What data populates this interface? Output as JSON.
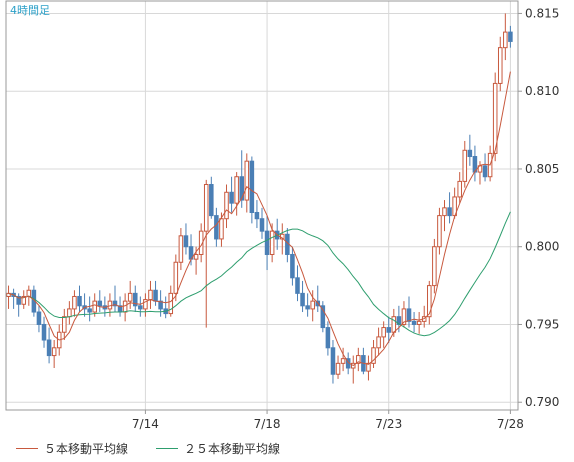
{
  "chart_data": {
    "type": "candlestick",
    "title": "4時間足",
    "x_ticks": [
      {
        "label": "7/14",
        "index": 27
      },
      {
        "label": "7/18",
        "index": 51
      },
      {
        "label": "7/23",
        "index": 75
      },
      {
        "label": "7/28",
        "index": 99
      }
    ],
    "y_ticks": [
      "0.815",
      "0.810",
      "0.805",
      "0.800",
      "0.795",
      "0.790"
    ],
    "ylim": [
      0.7895,
      0.8158
    ],
    "grid": true,
    "colors": {
      "up": "#c8593e",
      "down": "#4a7fb5",
      "ma5": "#c8593e",
      "ma25": "#2e9e6e",
      "grid": "#d8d8d8",
      "title": "#2ba0c8"
    },
    "ohlc": [
      [
        0.7968,
        0.7975,
        0.796,
        0.797
      ],
      [
        0.797,
        0.7973,
        0.796,
        0.7968
      ],
      [
        0.7968,
        0.797,
        0.7955,
        0.7963
      ],
      [
        0.7963,
        0.7972,
        0.796,
        0.7968
      ],
      [
        0.7968,
        0.7975,
        0.7962,
        0.7972
      ],
      [
        0.7972,
        0.7975,
        0.7955,
        0.7958
      ],
      [
        0.7958,
        0.7962,
        0.7945,
        0.795
      ],
      [
        0.795,
        0.7955,
        0.7935,
        0.794
      ],
      [
        0.794,
        0.7948,
        0.7925,
        0.793
      ],
      [
        0.793,
        0.794,
        0.7922,
        0.7935
      ],
      [
        0.7935,
        0.795,
        0.793,
        0.7945
      ],
      [
        0.7945,
        0.796,
        0.794,
        0.7955
      ],
      [
        0.7955,
        0.7965,
        0.795,
        0.796
      ],
      [
        0.796,
        0.7972,
        0.7955,
        0.7968
      ],
      [
        0.7968,
        0.7975,
        0.7958,
        0.7962
      ],
      [
        0.7962,
        0.797,
        0.7955,
        0.796
      ],
      [
        0.796,
        0.7968,
        0.7952,
        0.7958
      ],
      [
        0.7958,
        0.797,
        0.7955,
        0.7965
      ],
      [
        0.7965,
        0.7972,
        0.7958,
        0.7962
      ],
      [
        0.7962,
        0.7968,
        0.7955,
        0.796
      ],
      [
        0.796,
        0.797,
        0.7955,
        0.7965
      ],
      [
        0.7965,
        0.7975,
        0.7958,
        0.7962
      ],
      [
        0.7962,
        0.7968,
        0.7955,
        0.7958
      ],
      [
        0.7958,
        0.797,
        0.7952,
        0.7965
      ],
      [
        0.7965,
        0.7978,
        0.796,
        0.797
      ],
      [
        0.797,
        0.7975,
        0.7958,
        0.7962
      ],
      [
        0.7962,
        0.7968,
        0.7955,
        0.796
      ],
      [
        0.796,
        0.797,
        0.7955,
        0.7966
      ],
      [
        0.7966,
        0.7978,
        0.796,
        0.7972
      ],
      [
        0.7972,
        0.7978,
        0.7962,
        0.7965
      ],
      [
        0.7965,
        0.7972,
        0.7955,
        0.796
      ],
      [
        0.796,
        0.7968,
        0.7954,
        0.7957
      ],
      [
        0.7957,
        0.7975,
        0.7955,
        0.797
      ],
      [
        0.797,
        0.7995,
        0.7965,
        0.799
      ],
      [
        0.799,
        0.8012,
        0.7985,
        0.8007
      ],
      [
        0.8007,
        0.8015,
        0.7995,
        0.8
      ],
      [
        0.8,
        0.8008,
        0.7988,
        0.7992
      ],
      [
        0.7992,
        0.8,
        0.7982,
        0.7995
      ],
      [
        0.7995,
        0.8015,
        0.799,
        0.801
      ],
      [
        0.801,
        0.8043,
        0.7948,
        0.804
      ],
      [
        0.804,
        0.8045,
        0.8018,
        0.802
      ],
      [
        0.802,
        0.8025,
        0.8,
        0.8005
      ],
      [
        0.8005,
        0.8022,
        0.8,
        0.8018
      ],
      [
        0.8018,
        0.804,
        0.8012,
        0.8035
      ],
      [
        0.8035,
        0.8045,
        0.8022,
        0.8028
      ],
      [
        0.8028,
        0.8048,
        0.802,
        0.8045
      ],
      [
        0.8045,
        0.8062,
        0.8025,
        0.803
      ],
      [
        0.803,
        0.806,
        0.8022,
        0.8055
      ],
      [
        0.8055,
        0.8058,
        0.8015,
        0.8022
      ],
      [
        0.8022,
        0.803,
        0.8012,
        0.8018
      ],
      [
        0.8018,
        0.8025,
        0.8005,
        0.801
      ],
      [
        0.801,
        0.802,
        0.7985,
        0.7995
      ],
      [
        0.7995,
        0.8015,
        0.799,
        0.801
      ],
      [
        0.801,
        0.8018,
        0.7998,
        0.8005
      ],
      [
        0.8005,
        0.8015,
        0.7995,
        0.8008
      ],
      [
        0.8008,
        0.8012,
        0.799,
        0.7995
      ],
      [
        0.7995,
        0.8,
        0.7975,
        0.798
      ],
      [
        0.798,
        0.7988,
        0.7965,
        0.797
      ],
      [
        0.797,
        0.7978,
        0.7958,
        0.7962
      ],
      [
        0.7962,
        0.797,
        0.7955,
        0.796
      ],
      [
        0.796,
        0.7972,
        0.7952,
        0.7965
      ],
      [
        0.7965,
        0.7975,
        0.7958,
        0.7962
      ],
      [
        0.7962,
        0.7965,
        0.7945,
        0.7948
      ],
      [
        0.7948,
        0.7952,
        0.793,
        0.7935
      ],
      [
        0.7935,
        0.794,
        0.7912,
        0.7918
      ],
      [
        0.7918,
        0.793,
        0.7915,
        0.7925
      ],
      [
        0.7925,
        0.7935,
        0.792,
        0.7928
      ],
      [
        0.7928,
        0.7932,
        0.7918,
        0.7922
      ],
      [
        0.7922,
        0.793,
        0.7912,
        0.7925
      ],
      [
        0.7925,
        0.7935,
        0.792,
        0.793
      ],
      [
        0.793,
        0.7935,
        0.7918,
        0.792
      ],
      [
        0.792,
        0.793,
        0.7914,
        0.7925
      ],
      [
        0.7925,
        0.794,
        0.7922,
        0.7935
      ],
      [
        0.7935,
        0.7948,
        0.793,
        0.7942
      ],
      [
        0.7942,
        0.7952,
        0.7935,
        0.7948
      ],
      [
        0.7948,
        0.7955,
        0.7938,
        0.7945
      ],
      [
        0.7945,
        0.796,
        0.7942,
        0.7955
      ],
      [
        0.7955,
        0.7962,
        0.7945,
        0.795
      ],
      [
        0.795,
        0.7965,
        0.7948,
        0.796
      ],
      [
        0.796,
        0.7968,
        0.7948,
        0.7952
      ],
      [
        0.7952,
        0.7958,
        0.7945,
        0.795
      ],
      [
        0.795,
        0.7958,
        0.7944,
        0.7952
      ],
      [
        0.7952,
        0.7962,
        0.7948,
        0.7955
      ],
      [
        0.7955,
        0.7978,
        0.795,
        0.7975
      ],
      [
        0.7975,
        0.8005,
        0.797,
        0.8
      ],
      [
        0.8,
        0.8025,
        0.7995,
        0.802
      ],
      [
        0.802,
        0.803,
        0.801,
        0.8025
      ],
      [
        0.8025,
        0.8035,
        0.8015,
        0.802
      ],
      [
        0.802,
        0.8038,
        0.8018,
        0.8032
      ],
      [
        0.8032,
        0.8048,
        0.8028,
        0.8042
      ],
      [
        0.8042,
        0.8068,
        0.8038,
        0.8062
      ],
      [
        0.8062,
        0.8072,
        0.8052,
        0.8058
      ],
      [
        0.8058,
        0.8065,
        0.8042,
        0.8048
      ],
      [
        0.8048,
        0.8055,
        0.804,
        0.8052
      ],
      [
        0.8052,
        0.806,
        0.8042,
        0.8045
      ],
      [
        0.8045,
        0.8065,
        0.8042,
        0.806
      ],
      [
        0.806,
        0.8112,
        0.8055,
        0.8105
      ],
      [
        0.8105,
        0.8135,
        0.81,
        0.8128
      ],
      [
        0.8128,
        0.815,
        0.812,
        0.8138
      ],
      [
        0.8138,
        0.8142,
        0.8128,
        0.8132
      ]
    ],
    "legend": [
      "５本移動平均線",
      "２５本移動平均線"
    ]
  }
}
